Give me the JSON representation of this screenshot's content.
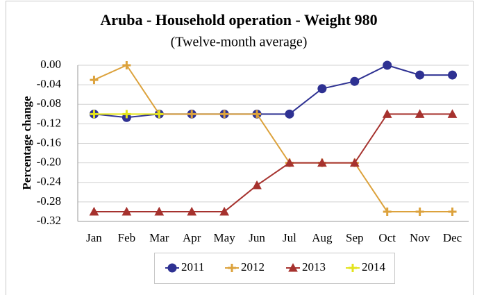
{
  "chart_data": {
    "type": "line",
    "title": "Aruba - Household operation - Weight 980",
    "subtitle": "(Twelve-month average)",
    "y_label": "Percentage change",
    "categories": [
      "Jan",
      "Feb",
      "Mar",
      "Apr",
      "May",
      "Jun",
      "Jul",
      "Aug",
      "Sep",
      "Oct",
      "Nov",
      "Dec"
    ],
    "series": [
      {
        "name": "2011",
        "color": "#2e3192",
        "marker": "circle",
        "values": [
          -0.1,
          -0.107,
          -0.1,
          -0.1,
          -0.1,
          -0.1,
          -0.1,
          -0.048,
          -0.033,
          0.0,
          -0.02,
          -0.02
        ]
      },
      {
        "name": "2012",
        "color": "#dca23c",
        "marker": "plus",
        "values": [
          -0.03,
          0.0,
          -0.1,
          -0.1,
          -0.1,
          -0.1,
          -0.2,
          -0.2,
          -0.2,
          -0.3,
          -0.3,
          -0.3
        ]
      },
      {
        "name": "2013",
        "color": "#a6322e",
        "marker": "triangle",
        "values": [
          -0.3,
          -0.3,
          -0.3,
          -0.3,
          -0.3,
          -0.246,
          -0.2,
          -0.2,
          -0.2,
          -0.1,
          -0.1,
          -0.1
        ]
      },
      {
        "name": "2014",
        "color": "#e3e31c",
        "marker": "plus",
        "values": [
          -0.1,
          -0.1,
          -0.1,
          null,
          null,
          null,
          null,
          null,
          null,
          null,
          null,
          null
        ]
      }
    ],
    "ylim": [
      -0.32,
      0.0
    ],
    "yticks": [
      {
        "value": 0.0,
        "label": "0.00"
      },
      {
        "value": -0.04,
        "label": "-0.04"
      },
      {
        "value": -0.08,
        "label": "-0.08"
      },
      {
        "value": -0.12,
        "label": "-0.12"
      },
      {
        "value": -0.16,
        "label": "-0.16"
      },
      {
        "value": -0.2,
        "label": "-0.20"
      },
      {
        "value": -0.24,
        "label": "-0.24"
      },
      {
        "value": -0.28,
        "label": "-0.28"
      },
      {
        "value": -0.32,
        "label": "-0.32"
      }
    ],
    "grid": true,
    "legend": "bottom"
  }
}
